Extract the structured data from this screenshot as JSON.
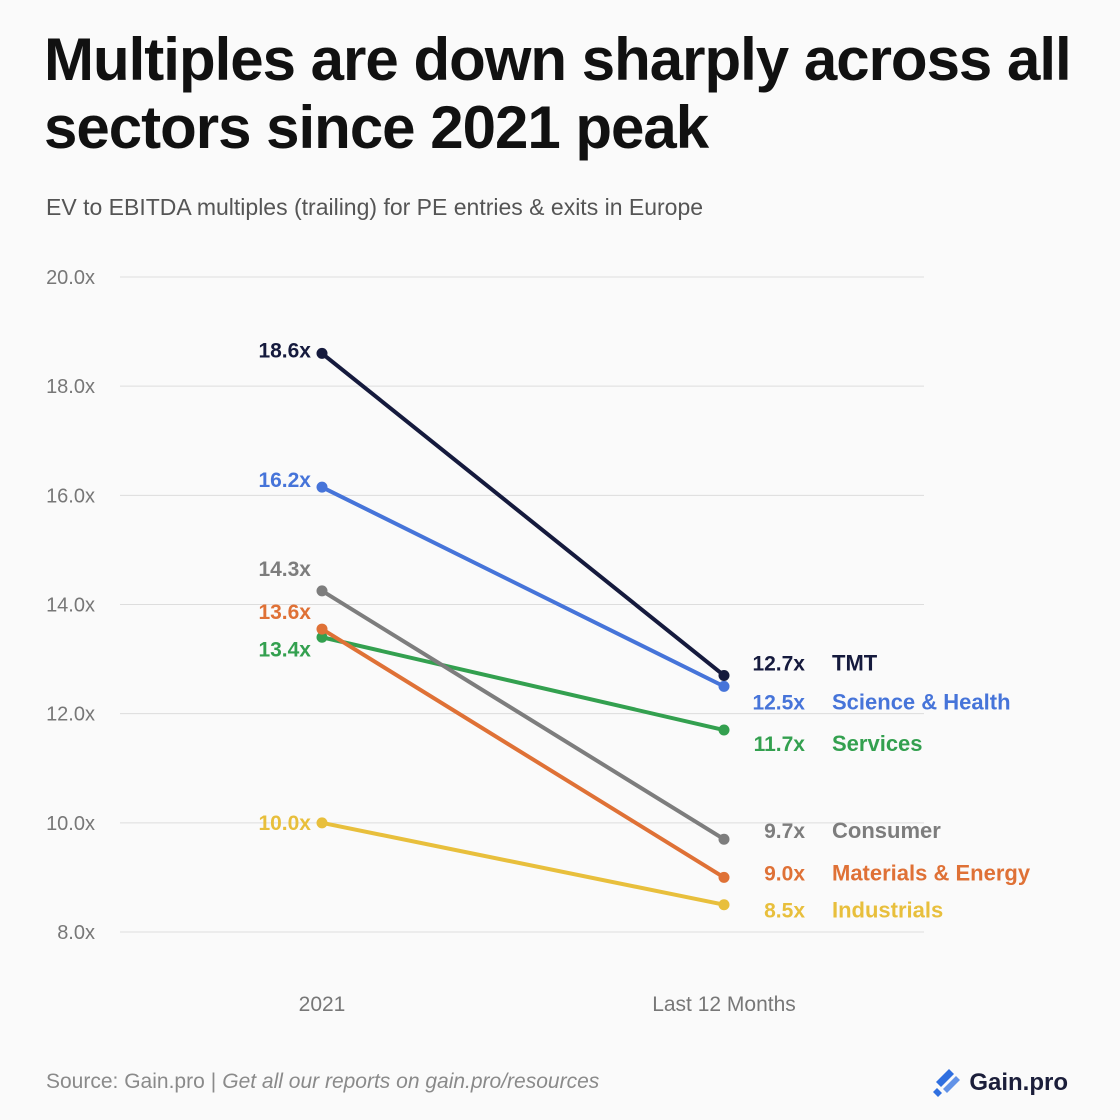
{
  "title": "Multiples are down sharply across all sectors since 2021 peak",
  "subtitle": "EV to EBITDA multiples (trailing) for PE entries & exits in Europe",
  "footer": {
    "source": "Source: Gain.pro",
    "separator": "|",
    "cta": "Get all our reports on gain.pro/resources"
  },
  "brand": {
    "name": "Gain.pro",
    "color": "#2f6fe0"
  },
  "chart_data": {
    "type": "line",
    "title": "Multiples are down sharply across all sectors since 2021 peak",
    "subtitle": "EV to EBITDA multiples (trailing) for PE entries & exits in Europe",
    "xlabel": "",
    "ylabel": "",
    "categories": [
      "2021",
      "Last 12 Months"
    ],
    "ylim": [
      8,
      20
    ],
    "yticks": [
      8,
      10,
      12,
      14,
      16,
      18,
      20
    ],
    "ytick_labels": [
      "8.0x",
      "10.0x",
      "12.0x",
      "14.0x",
      "16.0x",
      "18.0x",
      "20.0x"
    ],
    "grid": true,
    "legend": "right (direct labels)",
    "series": [
      {
        "name": "TMT",
        "values": [
          18.6,
          12.7
        ],
        "start_label": "18.6x",
        "end_label": "12.7x",
        "color": "#151a3d"
      },
      {
        "name": "Science & Health",
        "values": [
          16.15,
          12.5
        ],
        "start_label": "16.2x",
        "end_label": "12.5x",
        "color": "#4674d9"
      },
      {
        "name": "Services",
        "values": [
          13.4,
          11.7
        ],
        "start_label": "13.4x",
        "end_label": "11.7x",
        "color": "#33a04f"
      },
      {
        "name": "Consumer",
        "values": [
          14.25,
          9.7
        ],
        "start_label": "14.3x",
        "end_label": "9.7x",
        "color": "#7d7d7d"
      },
      {
        "name": "Materials & Energy",
        "values": [
          13.55,
          9.0
        ],
        "start_label": "13.6x",
        "end_label": "9.0x",
        "color": "#df7136"
      },
      {
        "name": "Industrials",
        "values": [
          10.0,
          8.5
        ],
        "start_label": "10.0x",
        "end_label": "8.5x",
        "color": "#e8bf3c"
      }
    ]
  }
}
